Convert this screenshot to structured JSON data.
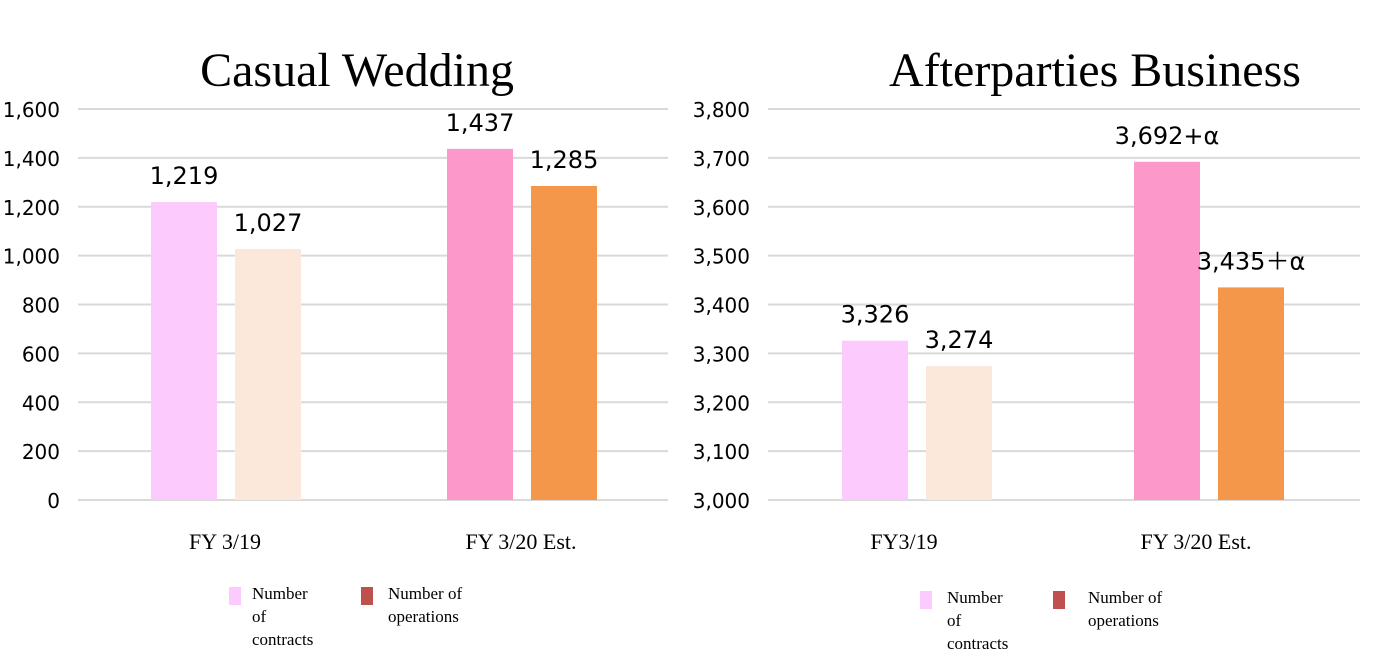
{
  "chart_data": [
    {
      "type": "bar",
      "title": "Casual Wedding",
      "categories": [
        "FY 3/19",
        "FY 3/20 Est."
      ],
      "ylim": [
        0,
        1600
      ],
      "yticks": [
        0,
        200,
        400,
        600,
        800,
        1000,
        1200,
        1400,
        1600
      ],
      "ytick_labels": [
        "0",
        "200",
        "400",
        "600",
        "800",
        "1,000",
        "1,200",
        "1,400",
        "1,600"
      ],
      "grid": true,
      "series": [
        {
          "name": "Number of contracts",
          "values": [
            1219,
            1437
          ],
          "labels": [
            "1,219",
            "1,437"
          ],
          "colors": [
            "#fccafc",
            "#fd98ca"
          ]
        },
        {
          "name": "Number of operations",
          "values": [
            1027,
            1285
          ],
          "labels": [
            "1,027",
            "1,285"
          ],
          "colors": [
            "#fbe8da",
            "#f5974a"
          ]
        }
      ],
      "legend": {
        "placement": "bottom",
        "items": [
          {
            "lines": [
              "Number",
              "of",
              "contracts"
            ],
            "color": "#fccafc"
          },
          {
            "lines": [
              "Number of",
              "operations"
            ],
            "color": "#c0504d"
          }
        ]
      }
    },
    {
      "type": "bar",
      "title": "Afterparties Business",
      "categories": [
        "FY3/19",
        "FY 3/20 Est."
      ],
      "ylim": [
        3000,
        3800
      ],
      "yticks": [
        3000,
        3100,
        3200,
        3300,
        3400,
        3500,
        3600,
        3700,
        3800
      ],
      "ytick_labels": [
        "3,000",
        "3,100",
        "3,200",
        "3,300",
        "3,400",
        "3,500",
        "3,600",
        "3,700",
        "3,800"
      ],
      "grid": true,
      "series": [
        {
          "name": "Number of contracts",
          "values": [
            3326,
            3692
          ],
          "labels": [
            "3,326",
            "3,692+α"
          ],
          "colors": [
            "#fccafc",
            "#fd98ca"
          ]
        },
        {
          "name": "Number of operations",
          "values": [
            3274,
            3435
          ],
          "labels": [
            "3,274",
            "3,435＋α"
          ],
          "colors": [
            "#fbe8da",
            "#f5974a"
          ]
        }
      ],
      "legend": {
        "placement": "bottom",
        "items": [
          {
            "lines": [
              "Number",
              "of",
              "contracts"
            ],
            "color": "#fccafc"
          },
          {
            "lines": [
              "Number of",
              "operations"
            ],
            "color": "#c0504d"
          }
        ]
      }
    }
  ]
}
